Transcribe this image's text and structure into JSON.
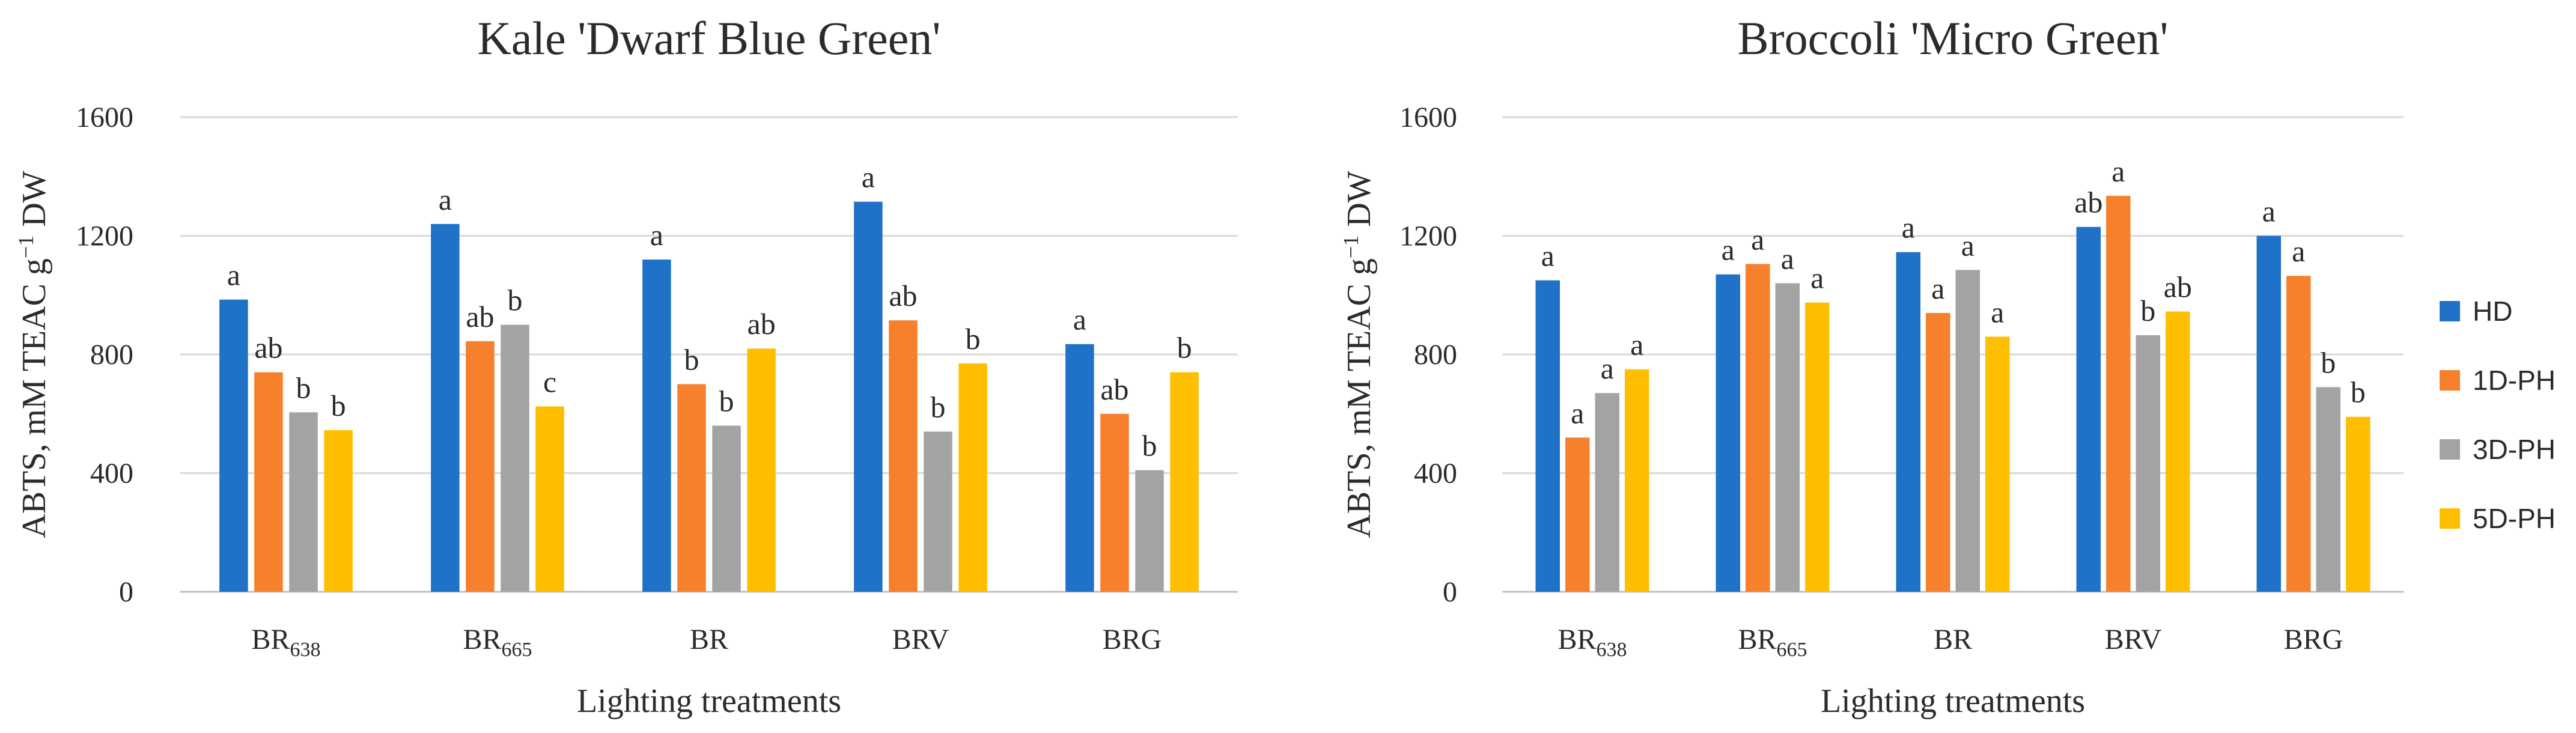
{
  "chart_data": [
    {
      "type": "bar",
      "title": "Kale 'Dwarf Blue Green'",
      "categories": [
        {
          "main": "BR",
          "sub": "638"
        },
        {
          "main": "BR",
          "sub": "665"
        },
        {
          "main": "BR",
          "sub": ""
        },
        {
          "main": "BRV",
          "sub": ""
        },
        {
          "main": "BRG",
          "sub": ""
        }
      ],
      "series": [
        {
          "name": "HD",
          "values": [
            985,
            1240,
            1120,
            1315,
            835
          ],
          "labels": [
            "a",
            "a",
            "a",
            "a",
            "a"
          ]
        },
        {
          "name": "1D-PH",
          "values": [
            740,
            845,
            700,
            915,
            600
          ],
          "labels": [
            "ab",
            "ab",
            "b",
            "ab",
            "ab"
          ]
        },
        {
          "name": "3D-PH",
          "values": [
            605,
            900,
            560,
            540,
            410
          ],
          "labels": [
            "b",
            "b",
            "b",
            "b",
            "b"
          ]
        },
        {
          "name": "5D-PH",
          "values": [
            545,
            625,
            820,
            770,
            740
          ],
          "labels": [
            "b",
            "c",
            "ab",
            "b",
            "b"
          ]
        }
      ],
      "xlabel": "Lighting treatments",
      "ylabel": {
        "prefix": "ABTS, mM TEAC g",
        "sup": "−1",
        "suffix": " DW"
      },
      "ylim": [
        0,
        1600
      ],
      "yticks": [
        "0",
        "400",
        "800",
        "1200",
        "1600"
      ]
    },
    {
      "type": "bar",
      "title": "Broccoli 'Micro Green'",
      "categories": [
        {
          "main": "BR",
          "sub": "638"
        },
        {
          "main": "BR",
          "sub": "665"
        },
        {
          "main": "BR",
          "sub": ""
        },
        {
          "main": "BRV",
          "sub": ""
        },
        {
          "main": "BRG",
          "sub": ""
        }
      ],
      "series": [
        {
          "name": "HD",
          "values": [
            1050,
            1070,
            1145,
            1230,
            1200
          ],
          "labels": [
            "a",
            "a",
            "a",
            "ab",
            "a"
          ]
        },
        {
          "name": "1D-PH",
          "values": [
            520,
            1105,
            940,
            1335,
            1065
          ],
          "labels": [
            "a",
            "a",
            "a",
            "a",
            "a"
          ]
        },
        {
          "name": "3D-PH",
          "values": [
            670,
            1040,
            1085,
            865,
            690
          ],
          "labels": [
            "a",
            "a",
            "a",
            "b",
            "b"
          ]
        },
        {
          "name": "5D-PH",
          "values": [
            750,
            975,
            860,
            945,
            590
          ],
          "labels": [
            "a",
            "a",
            "a",
            "ab",
            "b"
          ]
        }
      ],
      "xlabel": "Lighting treatments",
      "ylabel": {
        "prefix": "ABTS, mM TEAC g",
        "sup": "−1",
        "suffix": " DW"
      },
      "ylim": [
        0,
        1600
      ],
      "yticks": [
        "0",
        "400",
        "800",
        "1200",
        "1600"
      ]
    }
  ],
  "legend": [
    {
      "name": "HD",
      "color": "#1f72c8"
    },
    {
      "name": "1D-PH",
      "color": "#f7802d"
    },
    {
      "name": "3D-PH",
      "color": "#a3a3a3"
    },
    {
      "name": "5D-PH",
      "color": "#ffbf00"
    }
  ]
}
